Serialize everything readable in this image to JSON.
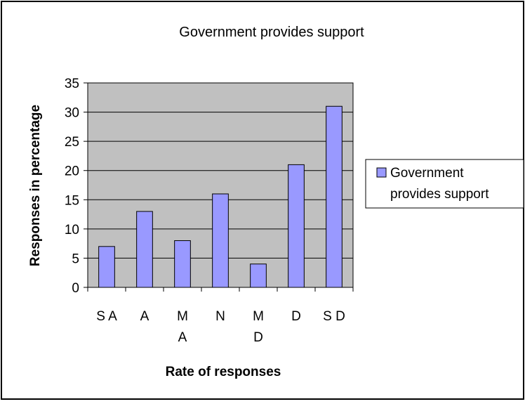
{
  "chart_data": {
    "type": "bar",
    "title": "Government provides support",
    "xlabel": "Rate of responses",
    "ylabel": "Responses in percentage",
    "categories": [
      [
        "S A"
      ],
      [
        "A"
      ],
      [
        "M",
        "A"
      ],
      [
        "N"
      ],
      [
        "M",
        "D"
      ],
      [
        "D"
      ],
      [
        "S D"
      ]
    ],
    "series": [
      {
        "name": "Government provides support",
        "values": [
          7,
          13,
          8,
          16,
          4,
          21,
          31
        ]
      }
    ],
    "ylim": [
      0,
      35
    ],
    "yticks": [
      0,
      5,
      10,
      15,
      20,
      25,
      30,
      35
    ],
    "grid": true,
    "legend_position": "right",
    "legend_lines": [
      "Government",
      "provides support"
    ],
    "colors": {
      "bar": "#9999ff",
      "bar_stroke": "#000000",
      "plot_bg": "#c0c0c0",
      "grid": "#000000"
    }
  }
}
